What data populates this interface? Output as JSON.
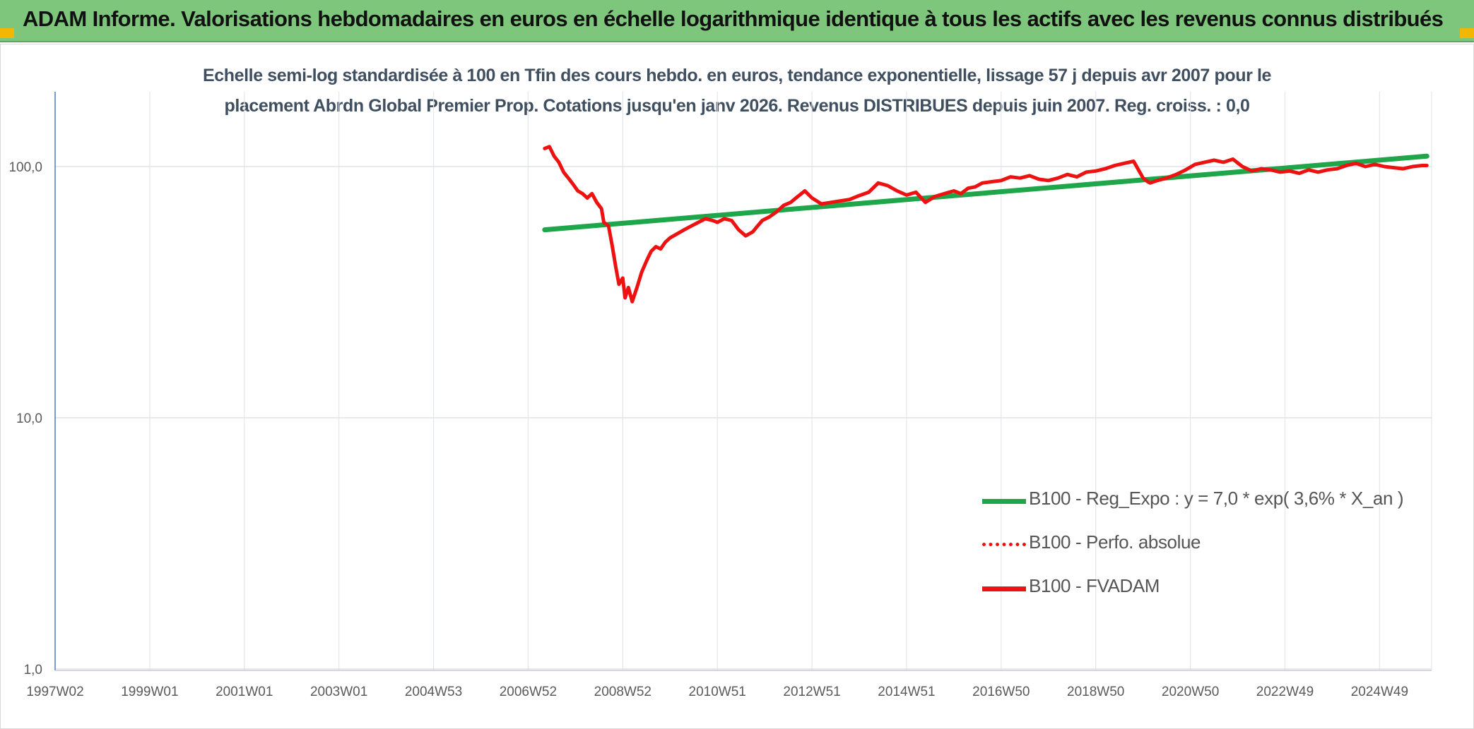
{
  "banner": {
    "title": "ADAM Informe. Valorisations hebdomadaires en euros en échelle logarithmique identique à tous les actifs avec les revenus connus distribués",
    "background": "#7dc67b",
    "corner_color": "#f2b705"
  },
  "chart_data": {
    "type": "line",
    "title_lines": [
      "Echelle semi-log standardisée à 100 en Tfin des cours hebdo. en euros, tendance exponentielle, lissage 57 j depuis avr 2007 pour le",
      "placement Abrdn Global Premier Prop. Cotations jusqu'en janv 2026. Revenus DISTRIBUES depuis juin 2007. Reg. croiss. : 0,0"
    ],
    "y_scale": "log",
    "ylim": [
      1,
      200
    ],
    "y_ticks": [
      {
        "value": 1,
        "label": "1,0"
      },
      {
        "value": 10,
        "label": "10,0"
      },
      {
        "value": 100,
        "label": "100,0"
      }
    ],
    "xlim": [
      1997.0,
      2026.1
    ],
    "x_ticks": [
      {
        "value": 1997.0,
        "label": "1997W02"
      },
      {
        "value": 1999.0,
        "label": "1999W01"
      },
      {
        "value": 2001.0,
        "label": "2001W01"
      },
      {
        "value": 2003.0,
        "label": "2003W01"
      },
      {
        "value": 2005.0,
        "label": "2004W53"
      },
      {
        "value": 2007.0,
        "label": "2006W52"
      },
      {
        "value": 2009.0,
        "label": "2008W52"
      },
      {
        "value": 2011.0,
        "label": "2010W51"
      },
      {
        "value": 2013.0,
        "label": "2012W51"
      },
      {
        "value": 2015.0,
        "label": "2014W51"
      },
      {
        "value": 2017.0,
        "label": "2016W50"
      },
      {
        "value": 2019.0,
        "label": "2018W50"
      },
      {
        "value": 2021.0,
        "label": "2020W50"
      },
      {
        "value": 2023.0,
        "label": "2022W49"
      },
      {
        "value": 2025.0,
        "label": "2024W49"
      }
    ],
    "grid": "vertical and horizontal",
    "legend_position": "lower-right",
    "series": [
      {
        "name": "B100 - Reg_Expo : y = 7,0 * exp( 3,6% *  X_an )",
        "color": "#1fa64a",
        "style": "solid",
        "x": [
          2007.35,
          2026.0
        ],
        "y": [
          56.0,
          110.0
        ]
      },
      {
        "name": "B100 - Perfo. absolue",
        "color": "#ee1111",
        "style": "dotted",
        "x": [],
        "y": []
      },
      {
        "name": "B100 - FVADAM",
        "color": "#ee1111",
        "style": "solid",
        "x": [
          2007.35,
          2007.45,
          2007.55,
          2007.65,
          2007.75,
          2007.85,
          2007.95,
          2008.05,
          2008.15,
          2008.25,
          2008.35,
          2008.45,
          2008.55,
          2008.6,
          2008.7,
          2008.78,
          2008.85,
          2008.92,
          2009.0,
          2009.05,
          2009.12,
          2009.2,
          2009.3,
          2009.4,
          2009.5,
          2009.6,
          2009.7,
          2009.8,
          2009.9,
          2010.0,
          2010.15,
          2010.3,
          2010.45,
          2010.6,
          2010.75,
          2010.9,
          2011.0,
          2011.15,
          2011.3,
          2011.45,
          2011.6,
          2011.75,
          2011.85,
          2011.95,
          2012.1,
          2012.25,
          2012.4,
          2012.55,
          2012.7,
          2012.85,
          2013.0,
          2013.2,
          2013.4,
          2013.6,
          2013.8,
          2013.95,
          2014.2,
          2014.4,
          2014.6,
          2014.8,
          2015.0,
          2015.2,
          2015.4,
          2015.6,
          2015.8,
          2016.0,
          2016.15,
          2016.3,
          2016.45,
          2016.6,
          2016.8,
          2017.0,
          2017.2,
          2017.4,
          2017.6,
          2017.8,
          2018.0,
          2018.2,
          2018.4,
          2018.6,
          2018.8,
          2019.0,
          2019.2,
          2019.4,
          2019.6,
          2019.8,
          2020.0,
          2020.1,
          2020.15,
          2020.3,
          2020.5,
          2020.7,
          2020.9,
          2021.1,
          2021.3,
          2021.5,
          2021.7,
          2021.9,
          2022.1,
          2022.3,
          2022.5,
          2022.7,
          2022.9,
          2023.1,
          2023.3,
          2023.5,
          2023.7,
          2023.9,
          2024.1,
          2024.3,
          2024.5,
          2024.7,
          2024.9,
          2025.1,
          2025.3,
          2025.5,
          2025.7,
          2025.9,
          2026.0
        ],
        "y": [
          118,
          120,
          110,
          104,
          95,
          90,
          85,
          80,
          78,
          75,
          78,
          72,
          68,
          60,
          58,
          48,
          40,
          34,
          36,
          30,
          33,
          29,
          33,
          38,
          42,
          46,
          48,
          47,
          50,
          52,
          54,
          56,
          58,
          60,
          62,
          61,
          60,
          62,
          61,
          56,
          53,
          55,
          58,
          61,
          63,
          66,
          70,
          72,
          76,
          80,
          75,
          71,
          72,
          73,
          74,
          76,
          79,
          86,
          84,
          80,
          77,
          79,
          72,
          76,
          78,
          80,
          78,
          82,
          83,
          86,
          87,
          88,
          91,
          90,
          92,
          89,
          88,
          90,
          93,
          91,
          95,
          96,
          98,
          101,
          103,
          105,
          90,
          87,
          86,
          88,
          90,
          93,
          97,
          102,
          104,
          106,
          104,
          107,
          100,
          96,
          98,
          97,
          95,
          96,
          94,
          97,
          95,
          97,
          98,
          101,
          103,
          100,
          102,
          100,
          99,
          98,
          100,
          101,
          101
        ]
      }
    ]
  }
}
